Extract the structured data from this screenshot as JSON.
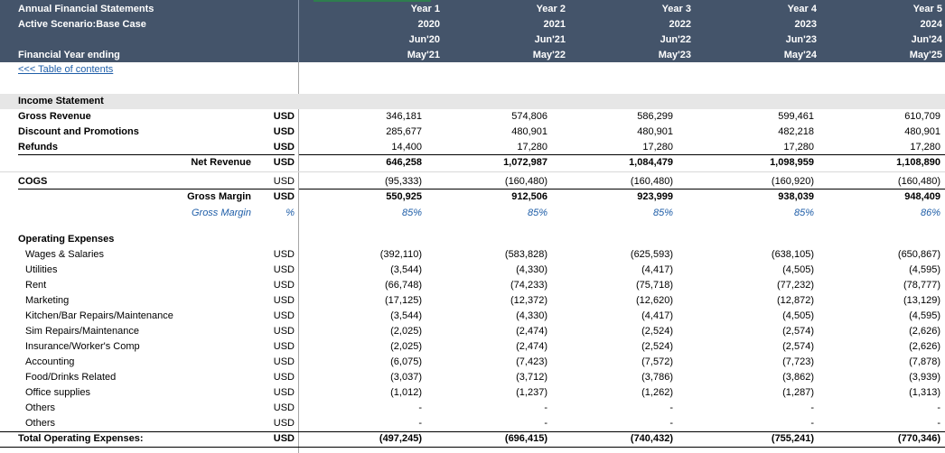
{
  "header": {
    "title": "Annual Financial Statements",
    "scenario": "Active Scenario:Base Case",
    "fy_label": "Financial Year ending",
    "years": [
      {
        "label": "Year 1",
        "year": "2020",
        "start": "Jun'20",
        "end": "May'21"
      },
      {
        "label": "Year 2",
        "year": "2021",
        "start": "Jun'21",
        "end": "May'22"
      },
      {
        "label": "Year 3",
        "year": "2022",
        "start": "Jun'22",
        "end": "May'23"
      },
      {
        "label": "Year 4",
        "year": "2023",
        "start": "Jun'23",
        "end": "May'24"
      },
      {
        "label": "Year 5",
        "year": "2024",
        "start": "Jun'24",
        "end": "May'25"
      }
    ]
  },
  "toc_link": "<<< Table of contents",
  "section_title": "Income Statement",
  "rows": [
    {
      "label": "Gross Revenue",
      "unit": "USD",
      "values": [
        "346,181",
        "574,806",
        "586,299",
        "599,461",
        "610,709"
      ]
    },
    {
      "label": "Discount and Promotions",
      "unit": "USD",
      "values": [
        "285,677",
        "480,901",
        "480,901",
        "482,218",
        "480,901"
      ]
    },
    {
      "label": "Refunds",
      "unit": "USD",
      "values": [
        "14,400",
        "17,280",
        "17,280",
        "17,280",
        "17,280"
      ]
    },
    {
      "label": "Net Revenue",
      "unit": "USD",
      "values": [
        "646,258",
        "1,072,987",
        "1,084,479",
        "1,098,959",
        "1,108,890"
      ]
    },
    {
      "label": "COGS",
      "unit": "USD",
      "values": [
        "(95,333)",
        "(160,480)",
        "(160,480)",
        "(160,920)",
        "(160,480)"
      ]
    },
    {
      "label": "Gross Margin",
      "unit": "USD",
      "values": [
        "550,925",
        "912,506",
        "923,999",
        "938,039",
        "948,409"
      ]
    },
    {
      "label": "Gross Margin",
      "unit": "%",
      "values": [
        "85%",
        "85%",
        "85%",
        "85%",
        "86%"
      ]
    },
    {
      "label": "Operating Expenses"
    },
    {
      "label": "Wages & Salaries",
      "unit": "USD",
      "values": [
        "(392,110)",
        "(583,828)",
        "(625,593)",
        "(638,105)",
        "(650,867)"
      ]
    },
    {
      "label": "Utilities",
      "unit": "USD",
      "values": [
        "(3,544)",
        "(4,330)",
        "(4,417)",
        "(4,505)",
        "(4,595)"
      ]
    },
    {
      "label": "Rent",
      "unit": "USD",
      "values": [
        "(66,748)",
        "(74,233)",
        "(75,718)",
        "(77,232)",
        "(78,777)"
      ]
    },
    {
      "label": "Marketing",
      "unit": "USD",
      "values": [
        "(17,125)",
        "(12,372)",
        "(12,620)",
        "(12,872)",
        "(13,129)"
      ]
    },
    {
      "label": "Kitchen/Bar Repairs/Maintenance",
      "unit": "USD",
      "values": [
        "(3,544)",
        "(4,330)",
        "(4,417)",
        "(4,505)",
        "(4,595)"
      ]
    },
    {
      "label": "Sim Repairs/Maintenance",
      "unit": "USD",
      "values": [
        "(2,025)",
        "(2,474)",
        "(2,524)",
        "(2,574)",
        "(2,626)"
      ]
    },
    {
      "label": "Insurance/Worker's Comp",
      "unit": "USD",
      "values": [
        "(2,025)",
        "(2,474)",
        "(2,524)",
        "(2,574)",
        "(2,626)"
      ]
    },
    {
      "label": "Accounting",
      "unit": "USD",
      "values": [
        "(6,075)",
        "(7,423)",
        "(7,572)",
        "(7,723)",
        "(7,878)"
      ]
    },
    {
      "label": "Food/Drinks Related",
      "unit": "USD",
      "values": [
        "(3,037)",
        "(3,712)",
        "(3,786)",
        "(3,862)",
        "(3,939)"
      ]
    },
    {
      "label": "Office supplies",
      "unit": "USD",
      "values": [
        "(1,012)",
        "(1,237)",
        "(1,262)",
        "(1,287)",
        "(1,313)"
      ]
    },
    {
      "label": "Others",
      "unit": "USD",
      "values": [
        "-",
        "-",
        "-",
        "-",
        "-"
      ]
    },
    {
      "label": "Others",
      "unit": "USD",
      "values": [
        "-",
        "-",
        "-",
        "-",
        "-"
      ]
    },
    {
      "label": "Total Operating Expenses:",
      "unit": "USD",
      "values": [
        "(497,245)",
        "(696,415)",
        "(740,432)",
        "(755,241)",
        "(770,346)"
      ]
    }
  ]
}
